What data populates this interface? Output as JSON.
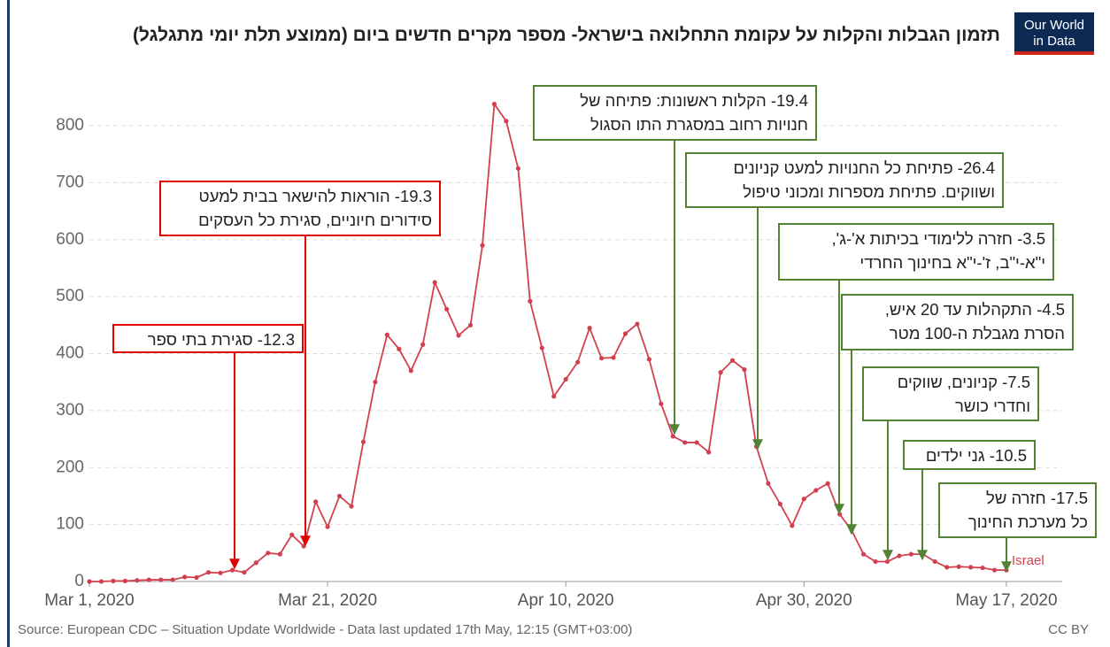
{
  "chart_data": {
    "type": "line",
    "title": "תזמון הגבלות והקלות על עקומת התחלואה בישראל- מספר מקרים חדשים ביום (ממוצע תלת יומי מתגלגל)",
    "logo": [
      "Our World",
      "in Data"
    ],
    "source": "Source: European CDC – Situation Update Worldwide - Data last updated 17th May, 12:15 (GMT+03:00)",
    "license": "CC BY",
    "x": [
      "2020-03-01",
      "2020-03-02",
      "2020-03-03",
      "2020-03-04",
      "2020-03-05",
      "2020-03-06",
      "2020-03-07",
      "2020-03-08",
      "2020-03-09",
      "2020-03-10",
      "2020-03-11",
      "2020-03-12",
      "2020-03-13",
      "2020-03-14",
      "2020-03-15",
      "2020-03-16",
      "2020-03-17",
      "2020-03-18",
      "2020-03-19",
      "2020-03-20",
      "2020-03-21",
      "2020-03-22",
      "2020-03-23",
      "2020-03-24",
      "2020-03-25",
      "2020-03-26",
      "2020-03-27",
      "2020-03-28",
      "2020-03-29",
      "2020-03-30",
      "2020-03-31",
      "2020-04-01",
      "2020-04-02",
      "2020-04-03",
      "2020-04-04",
      "2020-04-05",
      "2020-04-06",
      "2020-04-07",
      "2020-04-08",
      "2020-04-09",
      "2020-04-10",
      "2020-04-11",
      "2020-04-12",
      "2020-04-13",
      "2020-04-14",
      "2020-04-15",
      "2020-04-16",
      "2020-04-17",
      "2020-04-18",
      "2020-04-19",
      "2020-04-20",
      "2020-04-21",
      "2020-04-22",
      "2020-04-23",
      "2020-04-24",
      "2020-04-25",
      "2020-04-26",
      "2020-04-27",
      "2020-04-28",
      "2020-04-29",
      "2020-04-30",
      "2020-05-01",
      "2020-05-02",
      "2020-05-03",
      "2020-05-04",
      "2020-05-05",
      "2020-05-06",
      "2020-05-07",
      "2020-05-08",
      "2020-05-09",
      "2020-05-10",
      "2020-05-11",
      "2020-05-12",
      "2020-05-13",
      "2020-05-14",
      "2020-05-15",
      "2020-05-16",
      "2020-05-17"
    ],
    "series": [
      {
        "name": "Israel",
        "color": "#d2404f",
        "values": [
          0,
          0,
          1,
          1,
          2,
          3,
          3,
          3,
          8,
          7,
          16,
          15,
          20,
          16,
          33,
          50,
          48,
          82,
          62,
          140,
          96,
          150,
          132,
          245,
          350,
          433,
          408,
          370,
          416,
          525,
          478,
          432,
          450,
          590,
          838,
          808,
          725,
          492,
          410,
          325,
          355,
          385,
          445,
          392,
          393,
          435,
          452,
          390,
          312,
          255,
          244,
          244,
          227,
          367,
          388,
          372,
          237,
          172,
          136,
          98,
          145,
          160,
          172,
          118,
          90,
          48,
          35,
          35,
          45,
          48,
          48,
          35,
          25,
          26,
          25,
          24,
          20,
          20
        ]
      }
    ],
    "xlim": [
      "2020-03-01",
      "2020-05-17"
    ],
    "xticks": [
      {
        "value": "2020-03-01",
        "label": "Mar 1, 2020"
      },
      {
        "value": "2020-03-21",
        "label": "Mar 21, 2020"
      },
      {
        "value": "2020-04-10",
        "label": "Apr 10, 2020"
      },
      {
        "value": "2020-04-30",
        "label": "Apr 30, 2020"
      },
      {
        "value": "2020-05-17",
        "label": "May 17, 2020"
      }
    ],
    "ylim": [
      0,
      870
    ],
    "yticks": [
      0,
      100,
      200,
      300,
      400,
      500,
      600,
      700,
      800
    ],
    "grid": true,
    "annotations": [
      {
        "color": "#e00000",
        "lines": [
          "12.3- סגירת בתי ספר"
        ]
      },
      {
        "color": "#e00000",
        "lines": [
          "19.3- הוראות להישאר בבית למעט",
          "סידורים חיוניים, סגירת כל העסקים"
        ]
      },
      {
        "color": "#548235",
        "lines": [
          "19.4- הקלות ראשונות: פתיחה של",
          "חנויות רחוב במסגרת התו הסגול"
        ]
      },
      {
        "color": "#548235",
        "lines": [
          "26.4- פתיחת כל החנויות למעט קניונים",
          "ושווקים. פתיחת מספרות ומכוני טיפול"
        ]
      },
      {
        "color": "#548235",
        "lines": [
          "3.5- חזרה ללימודי בכיתות א'-ג',",
          "י\"א-י\"ב, ז'-י\"א בחינוך החרדי"
        ]
      },
      {
        "color": "#548235",
        "lines": [
          "4.5- התקהלות עד 20 איש,",
          "הסרת מגבלת ה-100 מטר"
        ]
      },
      {
        "color": "#548235",
        "lines": [
          "7.5- קניונים, שווקים",
          "וחדרי כושר"
        ]
      },
      {
        "color": "#548235",
        "lines": [
          "10.5- גני ילדים"
        ]
      },
      {
        "color": "#548235",
        "lines": [
          "17.5- חזרה של",
          "כל מערכת החינוך"
        ]
      }
    ]
  }
}
